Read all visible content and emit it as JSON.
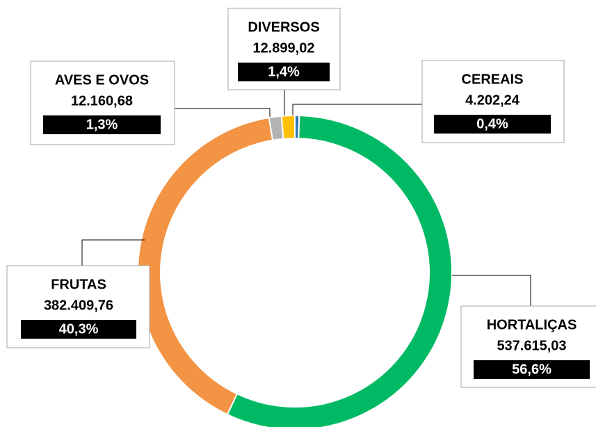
{
  "chart_data": {
    "type": "donut",
    "categories": [
      "CEREAIS",
      "HORTALIÇAS",
      "FRUTAS",
      "AVES E OVOS",
      "DIVERSOS"
    ],
    "values": [
      4202.24,
      537615.03,
      382409.76,
      12160.68,
      12899.02
    ],
    "value_labels": [
      "4.202,24",
      "537.615,03",
      "382.409,76",
      "12.160,68",
      "12.899,02"
    ],
    "percents": [
      0.4,
      56.6,
      40.3,
      1.3,
      1.4
    ],
    "percent_labels": [
      "0,4%",
      "56,6%",
      "40,3%",
      "1,3%",
      "1,4%"
    ],
    "colors": [
      "#2e75b6",
      "#00b964",
      "#f39444",
      "#b3b3b3",
      "#ffc000"
    ]
  }
}
